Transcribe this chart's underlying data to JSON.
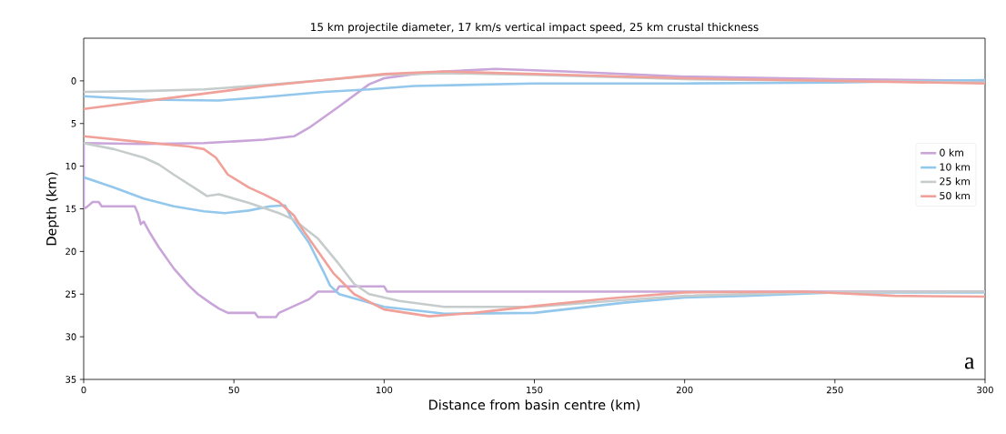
{
  "chart_data": {
    "type": "line",
    "title": "15 km projectile diameter, 17 km/s vertical impact speed, 25 km crustal thickness",
    "xlabel": "Distance from basin centre (km)",
    "ylabel": "Depth (km)",
    "xlim": [
      0,
      300
    ],
    "ylim": [
      35,
      -5
    ],
    "xticks": [
      0,
      50,
      100,
      150,
      200,
      250,
      300
    ],
    "yticks": [
      0,
      5,
      10,
      15,
      20,
      25,
      30,
      35
    ],
    "legend": "right",
    "grid": false,
    "marker": "none",
    "line_style": "solid",
    "annotations": [
      "a"
    ],
    "series": [
      {
        "name": "0 km",
        "color": "#c9a5d9",
        "x": [
          0,
          20,
          40,
          60,
          70,
          75,
          85,
          95,
          100,
          110,
          120,
          137,
          160,
          200,
          250,
          300
        ],
        "values": [
          7.3,
          7.4,
          7.3,
          6.9,
          6.5,
          5.5,
          3.0,
          0.4,
          -0.3,
          -0.8,
          -1.1,
          -1.4,
          -1.1,
          -0.5,
          -0.2,
          0.0
        ]
      },
      {
        "name": "10 km",
        "color": "#93c8ec",
        "x": [
          0,
          20,
          45,
          60,
          80,
          95,
          110,
          150,
          200,
          250,
          300
        ],
        "values": [
          1.8,
          2.2,
          2.3,
          1.9,
          1.3,
          1.0,
          0.6,
          0.3,
          0.3,
          0.2,
          -0.1
        ]
      },
      {
        "name": "25 km",
        "color": "#c6cccc",
        "x": [
          0,
          20,
          40,
          60,
          80,
          100,
          120,
          150,
          200,
          300
        ],
        "values": [
          1.3,
          1.2,
          1.0,
          0.5,
          -0.1,
          -0.7,
          -0.9,
          -0.7,
          -0.2,
          0.2
        ]
      },
      {
        "name": "50 km",
        "color": "#f0a199",
        "x": [
          0,
          20,
          40,
          60,
          80,
          100,
          120,
          150,
          200,
          250,
          300
        ],
        "values": [
          3.3,
          2.4,
          1.5,
          0.6,
          -0.1,
          -0.8,
          -1.1,
          -0.8,
          -0.3,
          0.0,
          0.3
        ]
      },
      {
        "color": "#c9a5d9",
        "x": [
          0,
          0,
          1,
          3,
          5,
          6,
          17,
          18,
          19,
          20,
          22,
          25,
          30,
          35,
          38,
          42,
          45,
          48,
          57,
          58,
          64,
          65,
          70,
          75,
          78,
          84,
          85,
          100,
          101,
          300
        ],
        "values": [
          7.3,
          15,
          14.8,
          14.2,
          14.2,
          14.7,
          14.7,
          15.5,
          16.8,
          16.5,
          17.8,
          19.5,
          22,
          24,
          25,
          26,
          26.7,
          27.2,
          27.2,
          27.7,
          27.7,
          27.2,
          26.4,
          25.6,
          24.7,
          24.7,
          24.1,
          24.1,
          24.7,
          24.7
        ]
      },
      {
        "color": "#93c8ec",
        "x": [
          0,
          10,
          20,
          30,
          40,
          47,
          55,
          62,
          67,
          69,
          75,
          80,
          82,
          85,
          100,
          120,
          150,
          180,
          200,
          220,
          250,
          300
        ],
        "values": [
          11.3,
          12.5,
          13.8,
          14.7,
          15.3,
          15.5,
          15.2,
          14.7,
          14.6,
          16,
          19,
          22.5,
          24,
          25,
          26.5,
          27.3,
          27.2,
          26,
          25.4,
          25.2,
          24.8,
          24.8
        ]
      },
      {
        "color": "#c6cccc",
        "x": [
          0,
          10,
          20,
          25,
          30,
          38,
          41,
          45,
          55,
          65,
          70,
          78,
          85,
          90,
          95,
          105,
          120,
          150,
          180,
          200,
          240,
          300
        ],
        "values": [
          7.3,
          8,
          9,
          9.8,
          11,
          12.8,
          13.5,
          13.3,
          14.3,
          15.5,
          16.3,
          18.5,
          21.5,
          23.8,
          25,
          25.8,
          26.5,
          26.5,
          25.7,
          25.2,
          24.8,
          24.7
        ]
      },
      {
        "color": "#f0a199",
        "x": [
          0,
          20,
          35,
          40,
          44,
          48,
          55,
          60,
          65,
          70,
          73,
          78,
          83,
          90,
          100,
          115,
          130,
          150,
          175,
          200,
          240,
          270,
          300
        ],
        "values": [
          6.5,
          7.2,
          7.7,
          8,
          9,
          11,
          12.5,
          13.3,
          14.2,
          15.8,
          17.5,
          20,
          22.5,
          25,
          26.8,
          27.6,
          27.2,
          26.4,
          25.5,
          24.8,
          24.7,
          25.2,
          25.3
        ]
      }
    ]
  }
}
